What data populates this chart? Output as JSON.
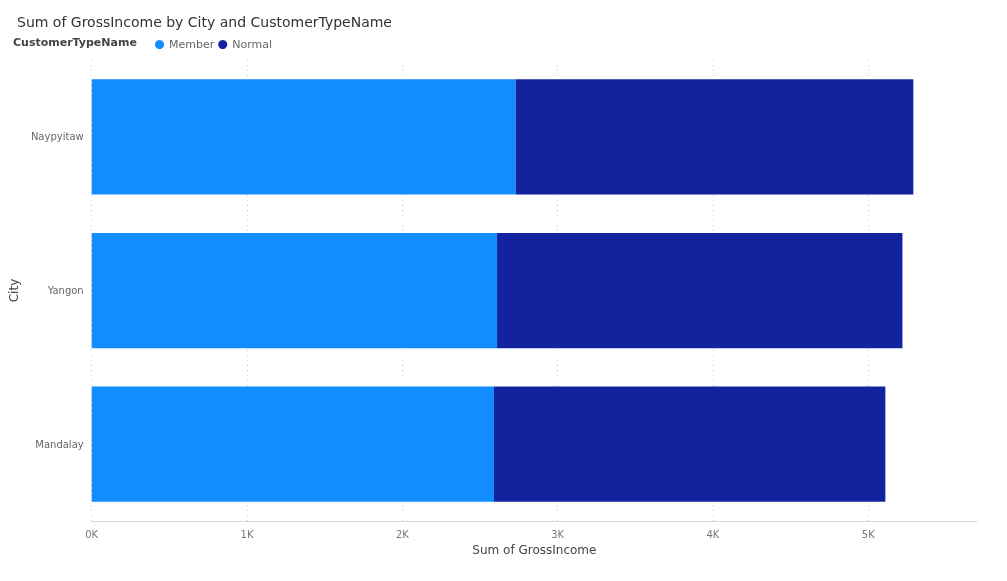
{
  "chart_data": {
    "type": "bar",
    "orientation": "horizontal",
    "stacked": true,
    "title": "Sum of GrossIncome by City and CustomerTypeName",
    "xlabel": "Sum of GrossIncome",
    "ylabel": "City",
    "legend_title": "CustomerTypeName",
    "legend": "top left",
    "grid": "x",
    "categories": [
      "Naypyitaw",
      "Yangon",
      "Mandalay"
    ],
    "series": [
      {
        "name": "Member",
        "color": "#118dff",
        "values": [
          2730,
          2610,
          2590
        ]
      },
      {
        "name": "Normal",
        "color": "#12239e",
        "values": [
          2560,
          2610,
          2520
        ]
      }
    ],
    "xlim": [
      0,
      5700
    ],
    "xticks": [
      {
        "value": 0,
        "label": "0K"
      },
      {
        "value": 1000,
        "label": "1K"
      },
      {
        "value": 2000,
        "label": "2K"
      },
      {
        "value": 3000,
        "label": "3K"
      },
      {
        "value": 4000,
        "label": "4K"
      },
      {
        "value": 5000,
        "label": "5K"
      }
    ]
  }
}
